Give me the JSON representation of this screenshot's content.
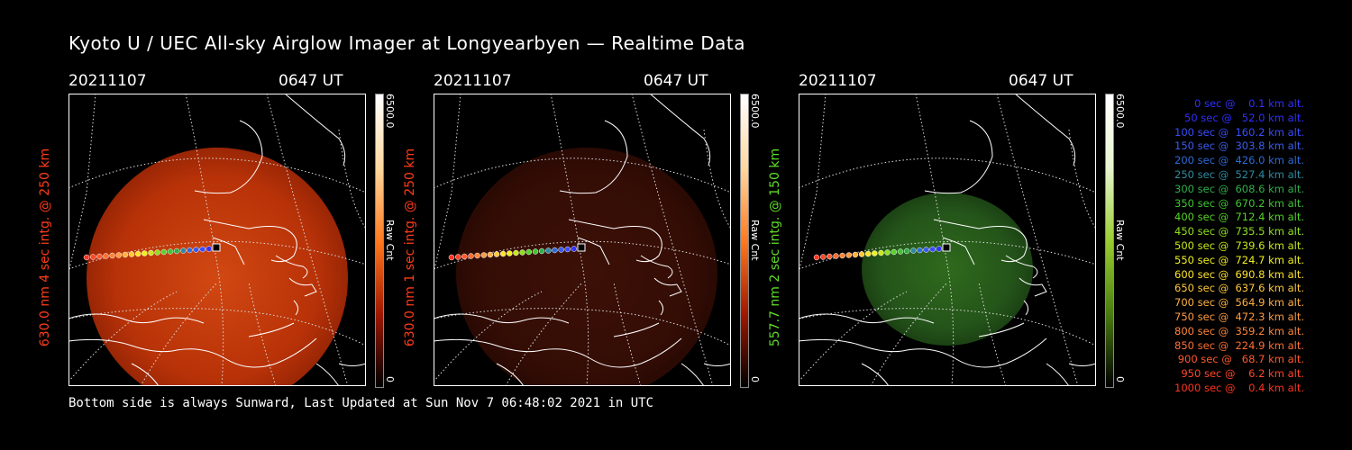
{
  "title": "Kyoto U / UEC All-sky Airglow Imager at Longyearbyen — Realtime Data",
  "footer": "Bottom side is always Sunward, Last Updated at Sun Nov  7 06:48:02 2021 in UTC",
  "panels": [
    {
      "date": "20211107",
      "time": "0647 UT",
      "ylabel": "630.0 nm 4 sec intg. @ 250 km",
      "ylabel_color": "#ff3b1a",
      "cbar_max": "6500.0",
      "cbar_unit": "Raw Cnt",
      "cbar_min": "0",
      "colormap": "red",
      "brightness": "bright"
    },
    {
      "date": "20211107",
      "time": "0647 UT",
      "ylabel": "630.0 nm 1 sec intg. @ 250 km",
      "ylabel_color": "#ff3b1a",
      "cbar_max": "6500.0",
      "cbar_unit": "Raw Cnt",
      "cbar_min": "0",
      "colormap": "red",
      "brightness": "dim"
    },
    {
      "date": "20211107",
      "time": "0647 UT",
      "ylabel": "557.7 nm 2 sec intg. @ 150 km",
      "ylabel_color": "#5fdc28",
      "cbar_max": "6500.0",
      "cbar_unit": "Raw Cnt",
      "cbar_min": "0",
      "colormap": "green",
      "brightness": "dim"
    }
  ],
  "legend": [
    {
      "text": "0 sec @    0.1 km alt.",
      "color": "#3030ff"
    },
    {
      "text": "50 sec @   52.0 km alt.",
      "color": "#3030ff"
    },
    {
      "text": "100 sec @  160.2 km alt.",
      "color": "#3a4cff"
    },
    {
      "text": "150 sec @  303.8 km alt.",
      "color": "#3a5cf0"
    },
    {
      "text": "200 sec @  426.0 km alt.",
      "color": "#2f6ad8"
    },
    {
      "text": "250 sec @  527.4 km alt.",
      "color": "#2e8aa0"
    },
    {
      "text": "300 sec @  608.6 km alt.",
      "color": "#2fae4a"
    },
    {
      "text": "350 sec @  670.2 km alt.",
      "color": "#3ec530"
    },
    {
      "text": "400 sec @  712.4 km alt.",
      "color": "#55d428"
    },
    {
      "text": "450 sec @  735.5 km alt.",
      "color": "#8ee020"
    },
    {
      "text": "500 sec @  739.6 km alt.",
      "color": "#c8e81a"
    },
    {
      "text": "550 sec @  724.7 km alt.",
      "color": "#f0f020"
    },
    {
      "text": "600 sec @  690.8 km alt.",
      "color": "#ffe22a"
    },
    {
      "text": "650 sec @  637.6 km alt.",
      "color": "#ffc83a"
    },
    {
      "text": "700 sec @  564.9 km alt.",
      "color": "#ffb040"
    },
    {
      "text": "750 sec @  472.3 km alt.",
      "color": "#ff9a40"
    },
    {
      "text": "800 sec @  359.2 km alt.",
      "color": "#ff8438"
    },
    {
      "text": "850 sec @  224.9 km alt.",
      "color": "#ff6e32"
    },
    {
      "text": "900 sec @   68.7 km alt.",
      "color": "#ff5a2c"
    },
    {
      "text": "950 sec @    6.2 km alt.",
      "color": "#ff4626"
    },
    {
      "text": "1000 sec @    0.4 km alt.",
      "color": "#ff3420"
    }
  ]
}
